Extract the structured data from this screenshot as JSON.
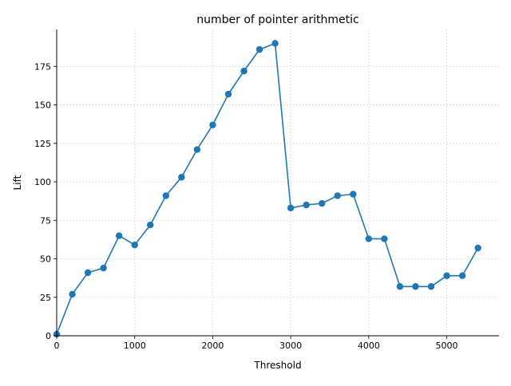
{
  "chart_data": {
    "type": "line",
    "title": "number of pointer arithmetic",
    "xlabel": "Threshold",
    "ylabel": "Lift",
    "xlim": [
      0,
      5670
    ],
    "ylim": [
      0,
      199
    ],
    "xticks": [
      0,
      1000,
      2000,
      3000,
      4000,
      5000
    ],
    "yticks": [
      0,
      25,
      50,
      75,
      100,
      125,
      150,
      175
    ],
    "grid": true,
    "color": "#1f77b4",
    "x": [
      0,
      200,
      400,
      600,
      800,
      1000,
      1200,
      1400,
      1600,
      1800,
      2000,
      2200,
      2400,
      2600,
      2800,
      3000,
      3200,
      3400,
      3600,
      3800,
      4000,
      4200,
      4400,
      4600,
      4800,
      5000,
      5200,
      5400
    ],
    "y": [
      1,
      27,
      41,
      44,
      65,
      59,
      72,
      91,
      103,
      121,
      137,
      157,
      172,
      186,
      190,
      83,
      85,
      86,
      91,
      92,
      63,
      63,
      32,
      32,
      32,
      39,
      39,
      57
    ]
  }
}
